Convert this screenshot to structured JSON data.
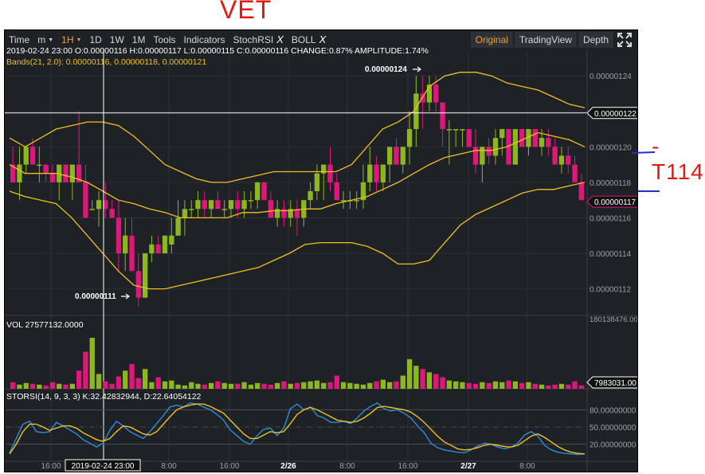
{
  "handwritten": {
    "title": "VET",
    "side_note": "-T114",
    "annotation_color": "#e8160c",
    "pen_color": "#2030c8"
  },
  "toolbar": {
    "time_label": "Time",
    "m_label": "m",
    "active_interval": "1H",
    "intervals": [
      "1D",
      "1W",
      "1M"
    ],
    "tools_label": "Tools",
    "indicators_label": "Indicators",
    "stochrsi_label": "StochRSI",
    "boll_label": "BOLL",
    "close_symbol": "X",
    "original_label": "Original",
    "tradingview_label": "TradingView",
    "depth_label": "Depth",
    "fullscreen_icon": "fullscreen-icon",
    "active_color": "#f0a02b"
  },
  "ohlc_info": "2019-02-24 23:00   O:0.00000116 H:0.00000117 L:0.00000115 C:0.00000116 CHANGE:0.87% AMPLITUDE:1.74%",
  "boll_info": "Bands(21, 2.0): 0.00000116, 0.00000118, 0.00000121",
  "vol_info": "VOL 27577132.0000",
  "stoch_info": "STORSI(14, 9, 3, 3) K:32.42832944, D:22.64054122",
  "crosshair_time": "2019-02-24 23:00",
  "crosshair_price": "0.00000122",
  "last_price": "0.00000117",
  "last_vol": "7983031.00",
  "vol_top_label": "180138476.00",
  "high_marker": "0.00000124",
  "low_marker": "0.00000111",
  "colors": {
    "up": "#8cb81e",
    "down": "#e0177a",
    "band": "#f0c020",
    "k_line": "#2a8fd6",
    "d_line": "#f0c020",
    "bg": "#1e2126",
    "grid": "#2c3037",
    "text": "#9aa0a6"
  },
  "chart_data": [
    {
      "type": "candlestick",
      "title": "",
      "ylim": [
        1.105e-06,
        1.254e-06
      ],
      "y_ticks": [
        "0.00000124",
        "0.00000122",
        "0.00000120",
        "0.00000118",
        "0.00000116",
        "0.00000114",
        "0.00000112"
      ],
      "x_ticks": [
        "16:00",
        "2/26",
        "8:00",
        "16:00",
        "2/27",
        "8:00",
        "8:00",
        "16:00"
      ],
      "ohlc": [
        [
          1.19,
          1.2,
          1.18,
          1.18
        ],
        [
          1.18,
          1.2,
          1.17,
          1.19
        ],
        [
          1.19,
          1.2,
          1.185,
          1.2
        ],
        [
          1.2,
          1.205,
          1.19,
          1.19
        ],
        [
          1.19,
          1.2,
          1.18,
          1.19
        ],
        [
          1.19,
          1.19,
          1.18,
          1.185
        ],
        [
          1.185,
          1.19,
          1.18,
          1.18
        ],
        [
          1.18,
          1.19,
          1.17,
          1.19
        ],
        [
          1.19,
          1.19,
          1.18,
          1.18
        ],
        [
          1.18,
          1.19,
          1.17,
          1.19
        ],
        [
          1.19,
          1.22,
          1.18,
          1.18
        ],
        [
          1.18,
          1.19,
          1.16,
          1.16
        ],
        [
          1.165,
          1.17,
          1.165,
          1.165
        ],
        [
          1.165,
          1.175,
          1.155,
          1.17
        ],
        [
          1.17,
          1.18,
          1.16,
          1.165
        ],
        [
          1.165,
          1.17,
          1.16,
          1.16
        ],
        [
          1.16,
          1.17,
          1.13,
          1.14
        ],
        [
          1.14,
          1.16,
          1.13,
          1.15
        ],
        [
          1.15,
          1.16,
          1.13,
          1.13
        ],
        [
          1.13,
          1.14,
          1.11,
          1.115
        ],
        [
          1.115,
          1.14,
          1.115,
          1.14
        ],
        [
          1.14,
          1.15,
          1.135,
          1.145
        ],
        [
          1.145,
          1.15,
          1.14,
          1.14
        ],
        [
          1.14,
          1.15,
          1.14,
          1.15
        ],
        [
          1.145,
          1.16,
          1.14,
          1.15
        ],
        [
          1.15,
          1.17,
          1.15,
          1.16
        ],
        [
          1.16,
          1.17,
          1.15,
          1.165
        ],
        [
          1.165,
          1.17,
          1.16,
          1.165
        ],
        [
          1.165,
          1.175,
          1.16,
          1.17
        ],
        [
          1.17,
          1.175,
          1.16,
          1.165
        ],
        [
          1.165,
          1.17,
          1.16,
          1.17
        ],
        [
          1.17,
          1.175,
          1.165,
          1.165
        ],
        [
          1.165,
          1.17,
          1.16,
          1.165
        ],
        [
          1.165,
          1.17,
          1.16,
          1.17
        ],
        [
          1.17,
          1.175,
          1.16,
          1.165
        ],
        [
          1.165,
          1.175,
          1.16,
          1.17
        ],
        [
          1.17,
          1.175,
          1.165,
          1.17
        ],
        [
          1.17,
          1.18,
          1.165,
          1.18
        ],
        [
          1.18,
          1.18,
          1.17,
          1.17
        ],
        [
          1.17,
          1.175,
          1.16,
          1.16
        ],
        [
          1.16,
          1.17,
          1.155,
          1.165
        ],
        [
          1.165,
          1.17,
          1.155,
          1.16
        ],
        [
          1.16,
          1.17,
          1.155,
          1.165
        ],
        [
          1.165,
          1.17,
          1.15,
          1.16
        ],
        [
          1.16,
          1.17,
          1.155,
          1.17
        ],
        [
          1.17,
          1.18,
          1.165,
          1.175
        ],
        [
          1.175,
          1.19,
          1.17,
          1.185
        ],
        [
          1.185,
          1.19,
          1.17,
          1.19
        ],
        [
          1.19,
          1.2,
          1.175,
          1.18
        ],
        [
          1.18,
          1.185,
          1.17,
          1.17
        ],
        [
          1.17,
          1.175,
          1.165,
          1.17
        ],
        [
          1.17,
          1.175,
          1.165,
          1.17
        ],
        [
          1.17,
          1.175,
          1.165,
          1.17
        ],
        [
          1.17,
          1.19,
          1.165,
          1.18
        ],
        [
          1.18,
          1.2,
          1.175,
          1.19
        ],
        [
          1.19,
          1.195,
          1.175,
          1.18
        ],
        [
          1.18,
          1.19,
          1.175,
          1.19
        ],
        [
          1.19,
          1.2,
          1.18,
          1.2
        ],
        [
          1.2,
          1.205,
          1.19,
          1.19
        ],
        [
          1.19,
          1.2,
          1.185,
          1.2
        ],
        [
          1.2,
          1.22,
          1.19,
          1.21
        ],
        [
          1.21,
          1.24,
          1.2,
          1.23
        ],
        [
          1.23,
          1.24,
          1.21,
          1.225
        ],
        [
          1.225,
          1.24,
          1.22,
          1.235
        ],
        [
          1.235,
          1.24,
          1.22,
          1.225
        ],
        [
          1.225,
          1.225,
          1.2,
          1.21
        ],
        [
          1.21,
          1.215,
          1.19,
          1.21
        ],
        [
          1.21,
          1.21,
          1.2,
          1.21
        ],
        [
          1.21,
          1.21,
          1.2,
          1.21
        ],
        [
          1.21,
          1.21,
          1.2,
          1.2
        ],
        [
          1.2,
          1.21,
          1.185,
          1.19
        ],
        [
          1.19,
          1.2,
          1.18,
          1.2
        ],
        [
          1.2,
          1.205,
          1.19,
          1.195
        ],
        [
          1.195,
          1.21,
          1.19,
          1.205
        ],
        [
          1.205,
          1.21,
          1.195,
          1.21
        ],
        [
          1.21,
          1.21,
          1.19,
          1.19
        ],
        [
          1.19,
          1.21,
          1.19,
          1.21
        ],
        [
          1.21,
          1.21,
          1.2,
          1.2
        ],
        [
          1.2,
          1.21,
          1.195,
          1.21
        ],
        [
          1.21,
          1.21,
          1.2,
          1.2
        ],
        [
          1.2,
          1.21,
          1.195,
          1.205
        ],
        [
          1.205,
          1.21,
          1.195,
          1.2
        ],
        [
          1.2,
          1.205,
          1.19,
          1.19
        ],
        [
          1.19,
          1.2,
          1.185,
          1.195
        ],
        [
          1.195,
          1.2,
          1.185,
          1.19
        ],
        [
          1.19,
          1.195,
          1.18,
          1.18
        ],
        [
          1.18,
          1.185,
          1.17,
          1.17
        ]
      ],
      "bands": {
        "upper": [
          1.205,
          1.2,
          1.205,
          1.21,
          1.212,
          1.214,
          1.214,
          1.212,
          1.206,
          1.198,
          1.19,
          1.186,
          1.182,
          1.18,
          1.18,
          1.182,
          1.184,
          1.186,
          1.186,
          1.186,
          1.186,
          1.186,
          1.19,
          1.2,
          1.21,
          1.214,
          1.22,
          1.234,
          1.24,
          1.242,
          1.242,
          1.24,
          1.236,
          1.234,
          1.232,
          1.228,
          1.224,
          1.222
        ],
        "mid": [
          1.19,
          1.185,
          1.185,
          1.185,
          1.183,
          1.18,
          1.175,
          1.17,
          1.168,
          1.165,
          1.163,
          1.16,
          1.16,
          1.16,
          1.16,
          1.163,
          1.163,
          1.164,
          1.164,
          1.165,
          1.165,
          1.168,
          1.17,
          1.172,
          1.176,
          1.18,
          1.185,
          1.19,
          1.194,
          1.196,
          1.198,
          1.198,
          1.2,
          1.204,
          1.208,
          1.206,
          1.204,
          1.2
        ],
        "lower": [
          1.175,
          1.172,
          1.17,
          1.168,
          1.16,
          1.15,
          1.14,
          1.13,
          1.122,
          1.12,
          1.12,
          1.122,
          1.124,
          1.126,
          1.128,
          1.13,
          1.132,
          1.136,
          1.14,
          1.145,
          1.146,
          1.146,
          1.146,
          1.144,
          1.14,
          1.134,
          1.134,
          1.136,
          1.146,
          1.156,
          1.162,
          1.166,
          1.17,
          1.174,
          1.176,
          1.176,
          1.178,
          1.18
        ]
      }
    },
    {
      "type": "bar",
      "title": "VOL",
      "ylim": [
        0,
        180138476
      ],
      "values": [
        8,
        5,
        7,
        6,
        5,
        4,
        8,
        6,
        5,
        6,
        22,
        45,
        62,
        18,
        9,
        6,
        15,
        22,
        30,
        13,
        24,
        8,
        14,
        9,
        10,
        5,
        4,
        8,
        6,
        5,
        7,
        9,
        7,
        6,
        6,
        8,
        5,
        7,
        6,
        5,
        7,
        9,
        6,
        7,
        8,
        9,
        10,
        7,
        8,
        16,
        8,
        7,
        6,
        5,
        7,
        9,
        11,
        8,
        9,
        16,
        36,
        28,
        24,
        20,
        18,
        14,
        10,
        9,
        8,
        7,
        6,
        8,
        7,
        9,
        8,
        10,
        9,
        7,
        8,
        6,
        5,
        4,
        5,
        6,
        5,
        9,
        4
      ]
    },
    {
      "type": "line",
      "title": "STORSI",
      "ylim": [
        0,
        100
      ],
      "y_ticks": [
        "80.00000000",
        "50.00000000",
        "20.00000000"
      ],
      "series": [
        {
          "name": "K",
          "values": [
            5,
            30,
            55,
            60,
            42,
            40,
            42,
            58,
            52,
            45,
            38,
            28,
            22,
            15,
            22,
            44,
            60,
            52,
            42,
            36,
            30,
            42,
            56,
            70,
            85,
            88,
            85,
            92,
            90,
            85,
            80,
            72,
            62,
            45,
            35,
            25,
            20,
            35,
            46,
            48,
            35,
            48,
            82,
            90,
            80,
            85,
            70,
            66,
            58,
            58,
            60,
            56,
            66,
            78,
            86,
            92,
            82,
            78,
            80,
            74,
            66,
            52,
            40,
            22,
            14,
            10,
            8,
            6,
            5,
            10,
            17,
            22,
            20,
            15,
            12,
            15,
            22,
            36,
            42,
            34,
            18,
            10,
            6,
            4,
            3,
            2,
            3
          ]
        },
        {
          "name": "D",
          "values": [
            3,
            20,
            42,
            55,
            55,
            50,
            44,
            48,
            52,
            52,
            48,
            40,
            34,
            28,
            25,
            30,
            42,
            52,
            50,
            44,
            38,
            36,
            42,
            55,
            68,
            80,
            85,
            88,
            90,
            90,
            86,
            80,
            74,
            62,
            50,
            38,
            30,
            30,
            36,
            42,
            40,
            42,
            56,
            72,
            80,
            84,
            80,
            74,
            68,
            62,
            60,
            58,
            60,
            66,
            74,
            84,
            86,
            84,
            82,
            80,
            76,
            68,
            58,
            46,
            34,
            24,
            18,
            12,
            10,
            11,
            14,
            18,
            20,
            18,
            16,
            15,
            18,
            26,
            34,
            38,
            32,
            24,
            16,
            10,
            6,
            4,
            3
          ]
        }
      ]
    }
  ]
}
